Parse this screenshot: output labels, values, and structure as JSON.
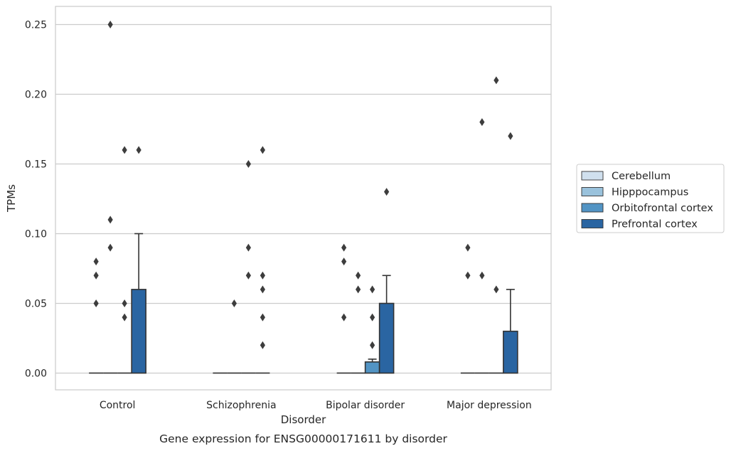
{
  "caption": "Gene expression for ENSG00000171611 by disorder",
  "chart_data": {
    "type": "bar",
    "xlabel": "Disorder",
    "ylabel": "TPMs",
    "ylim": [
      -0.012,
      0.263
    ],
    "yticks": [
      0.0,
      0.05,
      0.1,
      0.15,
      0.2,
      0.25
    ],
    "ytick_labels": [
      "0.00",
      "0.05",
      "0.10",
      "0.15",
      "0.20",
      "0.25"
    ],
    "grid": true,
    "legend_position": "right",
    "categories": [
      "Control",
      "Schizophrenia",
      "Bipolar disorder",
      "Major depression"
    ],
    "series": [
      {
        "name": "Cerebellum",
        "color": "#d0e0ee",
        "values": [
          0,
          0,
          0,
          0
        ],
        "error_upper": [
          null,
          null,
          null,
          null
        ],
        "outliers": [
          [
            0.05,
            0.07,
            0.08
          ],
          [],
          [
            0.04,
            0.08,
            0.09
          ],
          [
            0.07,
            0.09
          ]
        ]
      },
      {
        "name": "Hipppocampus",
        "color": "#9ac2dc",
        "values": [
          0,
          0,
          0,
          0
        ],
        "error_upper": [
          null,
          null,
          null,
          null
        ],
        "outliers": [
          [
            0.09,
            0.11,
            0.25
          ],
          [
            0.05
          ],
          [
            0.06,
            0.07
          ],
          [
            0.18,
            0.07
          ]
        ]
      },
      {
        "name": "Orbitofrontal cortex",
        "color": "#5294c4",
        "values": [
          0,
          0,
          0.008,
          0
        ],
        "error_upper": [
          null,
          null,
          0.01,
          null
        ],
        "outliers": [
          [
            0.04,
            0.05,
            0.16
          ],
          [
            0.07,
            0.09,
            0.15
          ],
          [
            0.02,
            0.04,
            0.06
          ],
          [
            0.06,
            0.21
          ]
        ]
      },
      {
        "name": "Prefrontal cortex",
        "color": "#2a65a2",
        "values": [
          0.06,
          0,
          0.05,
          0.03
        ],
        "error_upper": [
          0.1,
          null,
          0.07,
          0.06
        ],
        "outliers": [
          [
            0.16
          ],
          [
            0.02,
            0.04,
            0.06,
            0.07,
            0.16
          ],
          [
            0.13
          ],
          [
            0.17
          ]
        ]
      }
    ]
  }
}
